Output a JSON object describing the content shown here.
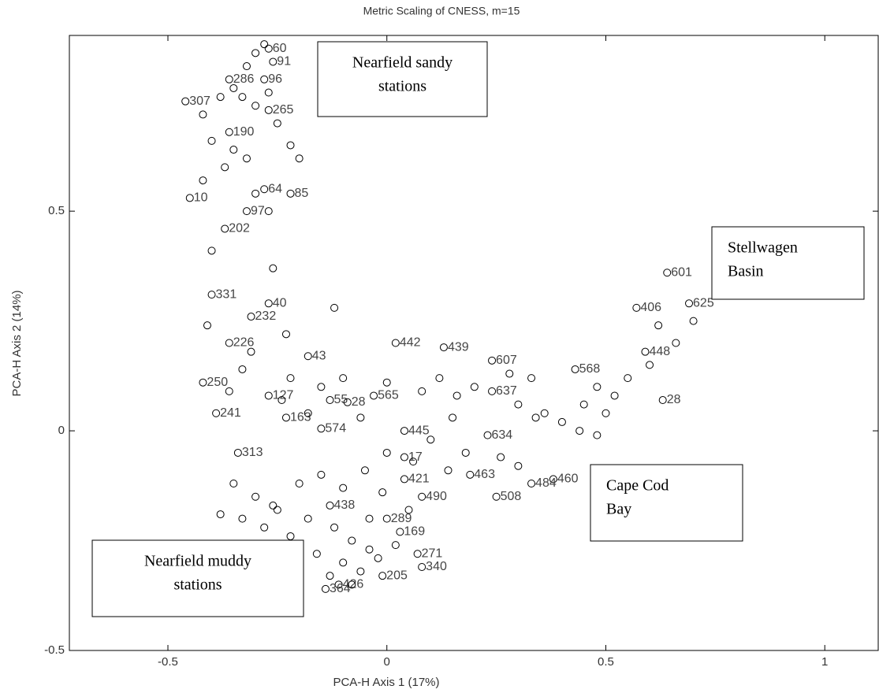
{
  "chart_data": {
    "type": "scatter",
    "title": "Metric Scaling of CNESS, m=15",
    "x_label": "PCA-H Axis 1 (17%)",
    "y_label": "PCA-H Axis 2 (14%)",
    "xlim": [
      -0.725,
      1.122
    ],
    "ylim": [
      -0.5,
      0.9
    ],
    "xticks": [
      -0.5,
      0,
      0.5,
      1
    ],
    "yticks": [
      -0.5,
      0,
      0.5
    ],
    "marker_color": "#000000",
    "annotations": [
      [
        "Nearfield sandy",
        "stations"
      ],
      [
        "Stellwagen",
        "Basin"
      ],
      [
        "Cape Cod",
        "Bay"
      ],
      [
        "Nearfield muddy",
        "stations"
      ]
    ],
    "series": [
      {
        "x": [
          -0.27,
          -0.26,
          -0.36,
          -0.28,
          -0.46,
          -0.27,
          -0.36,
          -0.28,
          -0.22,
          -0.45,
          -0.32,
          -0.37,
          -0.4,
          -0.27,
          -0.31,
          -0.36,
          -0.18,
          -0.42,
          -0.27,
          -0.13,
          -0.09,
          -0.39,
          -0.23,
          -0.15,
          -0.03,
          0.02,
          0.13,
          0.24,
          0.24,
          0.43,
          0.64,
          0.57,
          0.69,
          0.59,
          0.63,
          0.04,
          0.23,
          -0.34,
          0.04,
          0.19,
          0.38,
          0.33,
          0.08,
          0.25,
          0.04,
          -0.13,
          0.0,
          0.03,
          0.07,
          0.08,
          -0.01,
          -0.11,
          -0.14
        ],
        "y": [
          0.87,
          0.84,
          0.8,
          0.8,
          0.75,
          0.73,
          0.68,
          0.55,
          0.54,
          0.53,
          0.5,
          0.46,
          0.31,
          0.29,
          0.26,
          0.2,
          0.17,
          0.11,
          0.08,
          0.07,
          0.065,
          0.04,
          0.03,
          0.005,
          0.08,
          0.2,
          0.19,
          0.16,
          0.09,
          0.14,
          0.36,
          0.28,
          0.29,
          0.18,
          0.07,
          0.0,
          -0.01,
          -0.05,
          -0.06,
          -0.1,
          -0.11,
          -0.12,
          -0.15,
          -0.15,
          -0.11,
          -0.17,
          -0.2,
          -0.23,
          -0.28,
          -0.31,
          -0.33,
          -0.35,
          -0.36
        ],
        "labels": [
          "60",
          "91",
          "286",
          "96",
          "307",
          "265",
          "190",
          "64",
          "85",
          "10",
          "97",
          "202",
          "331",
          "40",
          "232",
          "226",
          "43",
          "250",
          "127",
          "55",
          "28",
          "241",
          "163",
          "574",
          "565",
          "442",
          "439",
          "607",
          "637",
          "568",
          "601",
          "406",
          "625",
          "448",
          "28",
          "445",
          "634",
          "313",
          "17",
          "463",
          "460",
          "484",
          "490",
          "508",
          "421",
          "438",
          "289",
          "169",
          "271",
          "340",
          "205",
          "426",
          "364"
        ]
      },
      {
        "x": [
          -0.28,
          -0.3,
          -0.32,
          -0.35,
          -0.38,
          -0.42,
          -0.33,
          -0.3,
          -0.27,
          -0.25,
          -0.4,
          -0.35,
          -0.32,
          -0.37,
          -0.22,
          -0.2,
          -0.42,
          -0.3,
          -0.27,
          -0.4,
          -0.26,
          -0.12,
          -0.41,
          -0.23,
          -0.31,
          -0.33,
          -0.22,
          -0.15,
          -0.1,
          -0.24,
          -0.36,
          -0.18,
          -0.06,
          0.0,
          0.08,
          0.12,
          0.16,
          0.2,
          0.28,
          0.33,
          0.3,
          0.36,
          0.4,
          0.45,
          0.48,
          0.52,
          0.55,
          0.6,
          0.66,
          0.7,
          0.62,
          0.5,
          0.44,
          0.48,
          0.34,
          0.15,
          0.1,
          0.06,
          0.18,
          0.26,
          0.3,
          0.14,
          -0.35,
          -0.3,
          -0.25,
          -0.2,
          -0.15,
          -0.1,
          -0.05,
          0.0,
          -0.38,
          -0.33,
          -0.28,
          -0.22,
          -0.18,
          -0.12,
          -0.08,
          -0.04,
          -0.16,
          -0.1,
          -0.06,
          -0.02,
          -0.2,
          -0.24,
          0.02,
          -0.13,
          -0.08,
          -0.3,
          -0.26,
          -0.04,
          -0.01,
          0.05
        ],
        "y": [
          0.88,
          0.86,
          0.83,
          0.78,
          0.76,
          0.72,
          0.76,
          0.74,
          0.77,
          0.7,
          0.66,
          0.64,
          0.62,
          0.6,
          0.65,
          0.62,
          0.57,
          0.54,
          0.5,
          0.41,
          0.37,
          0.28,
          0.24,
          0.22,
          0.18,
          0.14,
          0.12,
          0.1,
          0.12,
          0.07,
          0.09,
          0.04,
          0.03,
          0.11,
          0.09,
          0.12,
          0.08,
          0.1,
          0.13,
          0.12,
          0.06,
          0.04,
          0.02,
          0.06,
          0.1,
          0.08,
          0.12,
          0.15,
          0.2,
          0.25,
          0.24,
          0.04,
          0.0,
          -0.01,
          0.03,
          0.03,
          -0.02,
          -0.07,
          -0.05,
          -0.06,
          -0.08,
          -0.09,
          -0.12,
          -0.15,
          -0.18,
          -0.12,
          -0.1,
          -0.13,
          -0.09,
          -0.05,
          -0.19,
          -0.2,
          -0.22,
          -0.24,
          -0.2,
          -0.22,
          -0.25,
          -0.27,
          -0.28,
          -0.3,
          -0.32,
          -0.29,
          -0.3,
          -0.26,
          -0.26,
          -0.33,
          -0.35,
          -0.26,
          -0.17,
          -0.2,
          -0.14,
          -0.18
        ]
      }
    ]
  }
}
